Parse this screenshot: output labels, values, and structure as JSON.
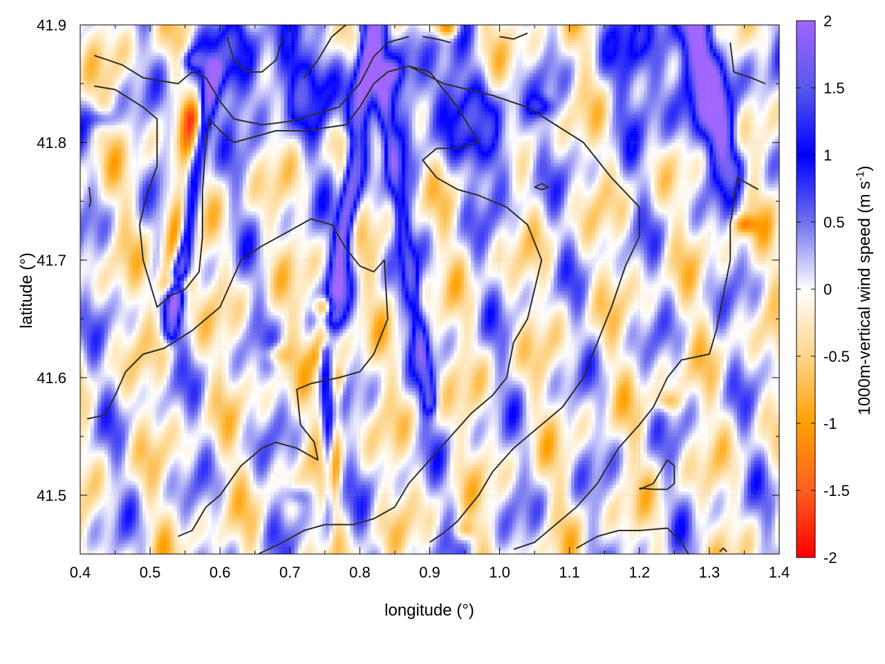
{
  "chart_data": {
    "type": "heatmap",
    "xlabel": "longitude (°)",
    "ylabel": "latitude (°)",
    "colorbar": {
      "label_main": "1000m-vertical wind speed (m s",
      "label_sup": "-1",
      "label_end": ")",
      "range": [
        -2,
        2
      ],
      "ticks": [
        2,
        1.5,
        1,
        0.5,
        0,
        -0.5,
        -1,
        -1.5,
        -2
      ],
      "tick_labels": [
        "2",
        "1.5",
        "1",
        "0.5",
        "0",
        "-0.5",
        "-1",
        "-1.5",
        "-2"
      ],
      "stops": [
        {
          "value": 2,
          "color": "#a066ff"
        },
        {
          "value": 1.5,
          "color": "#5858ee"
        },
        {
          "value": 1,
          "color": "#0000ff"
        },
        {
          "value": 0.5,
          "color": "#7070f0"
        },
        {
          "value": 0,
          "color": "#ffffff"
        },
        {
          "value": -0.5,
          "color": "#fdd58a"
        },
        {
          "value": -1,
          "color": "#ffa000"
        },
        {
          "value": -1.5,
          "color": "#ff6020"
        },
        {
          "value": -2,
          "color": "#ff0000"
        }
      ]
    },
    "xlim": [
      0.4,
      1.4
    ],
    "ylim": [
      41.45,
      41.9
    ],
    "x_ticks": [
      0.4,
      0.5,
      0.6,
      0.7,
      0.8,
      0.9,
      1.0,
      1.1,
      1.2,
      1.3,
      1.4
    ],
    "x_tick_labels": [
      "0.4",
      "0.5",
      "0.6",
      "0.7",
      "0.8",
      "0.9",
      "1.0",
      "1.1",
      "1.2",
      "1.3",
      "1.4"
    ],
    "y_ticks": [
      41.5,
      41.6,
      41.7,
      41.8,
      41.9
    ],
    "y_tick_labels": [
      "41.5",
      "41.6",
      "41.7",
      "41.8",
      "41.9"
    ],
    "grid": true,
    "features": [
      {
        "x0": 0.82,
        "y0": 41.9,
        "x1": 0.76,
        "y1": 41.66,
        "value": 2.0,
        "width": 0.012
      },
      {
        "x0": 0.83,
        "y0": 41.85,
        "x1": 0.9,
        "y1": 41.58,
        "value": 1.2,
        "width": 0.008
      },
      {
        "x0": 0.59,
        "y0": 41.86,
        "x1": 0.53,
        "y1": 41.64,
        "value": 1.4,
        "width": 0.008
      },
      {
        "x0": 0.56,
        "y0": 41.82,
        "x1": 0.52,
        "y1": 41.68,
        "value": -0.9,
        "width": 0.009
      },
      {
        "x0": 0.78,
        "y0": 41.8,
        "x1": 0.74,
        "y1": 41.62,
        "value": -0.7,
        "width": 0.008
      },
      {
        "x0": 0.75,
        "y0": 41.62,
        "x1": 0.76,
        "y1": 41.45,
        "value": 0.9,
        "width": 0.006
      },
      {
        "x0": 0.77,
        "y0": 41.6,
        "x1": 0.76,
        "y1": 41.45,
        "value": -0.8,
        "width": 0.006
      },
      {
        "x0": 1.28,
        "y0": 41.9,
        "x1": 1.33,
        "y1": 41.78,
        "value": 1.3,
        "width": 0.014
      },
      {
        "x0": 0.88,
        "y0": 41.85,
        "x1": 1.0,
        "y1": 41.8,
        "value": 0.9,
        "width": 0.03
      },
      {
        "x0": 0.6,
        "y0": 41.87,
        "x1": 0.75,
        "y1": 41.85,
        "value": 0.9,
        "width": 0.03
      },
      {
        "x0": 1.22,
        "y0": 41.88,
        "x1": 1.3,
        "y1": 41.84,
        "value": 0.9,
        "width": 0.04
      }
    ],
    "spots": [
      {
        "x": 0.925,
        "y": 41.898,
        "value": -1.6
      },
      {
        "x": 1.35,
        "y": 41.73,
        "value": -1.1
      },
      {
        "x": 0.75,
        "y": 41.66,
        "value": -1.5
      },
      {
        "x": 0.54,
        "y": 41.68,
        "value": -1.2
      },
      {
        "x": 0.68,
        "y": 41.62,
        "value": -0.8
      },
      {
        "x": 1.24,
        "y": 41.58,
        "value": -0.8
      },
      {
        "x": 0.95,
        "y": 41.47,
        "value": -0.7
      },
      {
        "x": 1.06,
        "y": 41.83,
        "value": 0.9
      },
      {
        "x": 0.56,
        "y": 41.87,
        "value": 0.9
      },
      {
        "x": 0.84,
        "y": 41.86,
        "value": 1.2
      },
      {
        "x": 0.71,
        "y": 41.5,
        "value": 0.7
      },
      {
        "x": 0.43,
        "y": 41.82,
        "value": 0.8
      }
    ],
    "contours": [
      [
        [
          0.42,
          41.874
        ],
        [
          0.46,
          41.866
        ],
        [
          0.49,
          41.855
        ],
        [
          0.54,
          41.85
        ],
        [
          0.56,
          41.86
        ],
        [
          0.58,
          41.855
        ],
        [
          0.6,
          41.835
        ],
        [
          0.62,
          41.82
        ],
        [
          0.66,
          41.815
        ],
        [
          0.7,
          41.818
        ],
        [
          0.74,
          41.825
        ],
        [
          0.77,
          41.83
        ],
        [
          0.8,
          41.85
        ],
        [
          0.82,
          41.873
        ],
        [
          0.84,
          41.885
        ],
        [
          0.87,
          41.89
        ]
      ],
      [
        [
          0.42,
          41.848
        ],
        [
          0.45,
          41.845
        ],
        [
          0.49,
          41.83
        ],
        [
          0.51,
          41.82
        ],
        [
          0.51,
          41.78
        ],
        [
          0.495,
          41.755
        ],
        [
          0.485,
          41.73
        ],
        [
          0.49,
          41.7
        ],
        [
          0.5,
          41.68
        ],
        [
          0.51,
          41.66
        ],
        [
          0.53,
          41.67
        ],
        [
          0.55,
          41.675
        ],
        [
          0.57,
          41.69
        ],
        [
          0.575,
          41.72
        ],
        [
          0.575,
          41.76
        ],
        [
          0.58,
          41.8
        ],
        [
          0.585,
          41.82
        ]
      ],
      [
        [
          0.41,
          41.565
        ],
        [
          0.435,
          41.568
        ],
        [
          0.45,
          41.585
        ],
        [
          0.465,
          41.605
        ],
        [
          0.49,
          41.62
        ],
        [
          0.52,
          41.625
        ],
        [
          0.56,
          41.64
        ],
        [
          0.6,
          41.66
        ],
        [
          0.63,
          41.7
        ],
        [
          0.66,
          41.712
        ],
        [
          0.7,
          41.725
        ],
        [
          0.73,
          41.735
        ],
        [
          0.76,
          41.73
        ],
        [
          0.78,
          41.71
        ],
        [
          0.8,
          41.695
        ],
        [
          0.82,
          41.69
        ],
        [
          0.835,
          41.7
        ],
        [
          0.84,
          41.65
        ],
        [
          0.82,
          41.62
        ],
        [
          0.8,
          41.605
        ],
        [
          0.77,
          41.6
        ],
        [
          0.73,
          41.595
        ],
        [
          0.71,
          41.59
        ],
        [
          0.715,
          41.56
        ],
        [
          0.735,
          41.545
        ],
        [
          0.74,
          41.53
        ],
        [
          0.71,
          41.54
        ],
        [
          0.68,
          41.545
        ],
        [
          0.66,
          41.54
        ],
        [
          0.63,
          41.525
        ],
        [
          0.6,
          41.5
        ],
        [
          0.58,
          41.49
        ],
        [
          0.56,
          41.47
        ],
        [
          0.54,
          41.465
        ]
      ],
      [
        [
          0.585,
          41.82
        ],
        [
          0.6,
          41.81
        ],
        [
          0.62,
          41.8
        ],
        [
          0.65,
          41.805
        ],
        [
          0.68,
          41.81
        ],
        [
          0.72,
          41.81
        ],
        [
          0.78,
          41.815
        ],
        [
          0.8,
          41.83
        ],
        [
          0.82,
          41.85
        ],
        [
          0.84,
          41.86
        ],
        [
          0.87,
          41.865
        ],
        [
          0.9,
          41.86
        ],
        [
          0.94,
          41.83
        ],
        [
          0.97,
          41.8
        ],
        [
          0.94,
          41.795
        ],
        [
          0.91,
          41.795
        ],
        [
          0.89,
          41.785
        ],
        [
          0.91,
          41.77
        ],
        [
          0.94,
          41.76
        ],
        [
          0.97,
          41.755
        ],
        [
          1.01,
          41.745
        ],
        [
          1.04,
          41.73
        ],
        [
          1.06,
          41.7
        ],
        [
          1.04,
          41.65
        ],
        [
          1.02,
          41.63
        ],
        [
          1.01,
          41.6
        ],
        [
          0.99,
          41.585
        ],
        [
          0.96,
          41.57
        ],
        [
          0.93,
          41.55
        ],
        [
          0.9,
          41.53
        ],
        [
          0.87,
          41.51
        ],
        [
          0.85,
          41.49
        ],
        [
          0.82,
          41.48
        ],
        [
          0.79,
          41.475
        ],
        [
          0.75,
          41.475
        ],
        [
          0.72,
          41.47
        ],
        [
          0.69,
          41.46
        ],
        [
          0.655,
          41.45
        ]
      ],
      [
        [
          0.87,
          41.865
        ],
        [
          0.92,
          41.85
        ],
        [
          0.99,
          41.84
        ],
        [
          1.04,
          41.83
        ],
        [
          1.08,
          41.815
        ],
        [
          1.12,
          41.8
        ],
        [
          1.16,
          41.77
        ],
        [
          1.2,
          41.745
        ],
        [
          1.2,
          41.72
        ],
        [
          1.18,
          41.695
        ],
        [
          1.16,
          41.66
        ],
        [
          1.14,
          41.63
        ],
        [
          1.12,
          41.6
        ],
        [
          1.09,
          41.575
        ],
        [
          1.06,
          41.56
        ],
        [
          1.02,
          41.54
        ],
        [
          0.99,
          41.52
        ],
        [
          0.97,
          41.5
        ],
        [
          0.94,
          41.478
        ],
        [
          0.92,
          41.468
        ],
        [
          0.9,
          41.46
        ]
      ],
      [
        [
          1.37,
          41.76
        ],
        [
          1.34,
          41.77
        ],
        [
          1.33,
          41.73
        ],
        [
          1.33,
          41.7
        ],
        [
          1.32,
          41.67
        ],
        [
          1.31,
          41.64
        ],
        [
          1.3,
          41.62
        ],
        [
          1.26,
          41.615
        ],
        [
          1.24,
          41.6
        ],
        [
          1.22,
          41.575
        ],
        [
          1.2,
          41.56
        ],
        [
          1.17,
          41.54
        ],
        [
          1.14,
          41.51
        ],
        [
          1.11,
          41.49
        ],
        [
          1.07,
          41.47
        ],
        [
          1.05,
          41.46
        ],
        [
          1.02,
          41.454
        ]
      ],
      [
        [
          0.72,
          41.855
        ],
        [
          0.74,
          41.87
        ],
        [
          0.76,
          41.89
        ],
        [
          0.78,
          41.9
        ]
      ],
      [
        [
          0.61,
          41.89
        ],
        [
          0.62,
          41.87
        ],
        [
          0.64,
          41.86
        ],
        [
          0.66,
          41.86
        ],
        [
          0.68,
          41.87
        ],
        [
          0.69,
          41.89
        ]
      ],
      [
        [
          1.33,
          41.885
        ],
        [
          1.335,
          41.86
        ],
        [
          1.36,
          41.855
        ],
        [
          1.38,
          41.85
        ]
      ],
      [
        [
          1.2,
          41.506
        ],
        [
          1.22,
          41.505
        ],
        [
          1.24,
          41.505
        ],
        [
          1.25,
          41.51
        ],
        [
          1.25,
          41.525
        ],
        [
          1.24,
          41.53
        ],
        [
          1.23,
          41.52
        ],
        [
          1.22,
          41.51
        ],
        [
          1.2,
          41.505
        ]
      ],
      [
        [
          1.11,
          41.455
        ],
        [
          1.14,
          41.465
        ],
        [
          1.17,
          41.47
        ],
        [
          1.2,
          41.47
        ],
        [
          1.24,
          41.472
        ],
        [
          1.26,
          41.46
        ],
        [
          1.27,
          41.45
        ]
      ],
      [
        [
          0.413,
          41.762
        ],
        [
          0.415,
          41.75
        ],
        [
          0.413,
          41.745
        ]
      ],
      [
        [
          1.05,
          41.762
        ],
        [
          1.06,
          41.765
        ],
        [
          1.07,
          41.762
        ],
        [
          1.06,
          41.76
        ],
        [
          1.05,
          41.762
        ]
      ],
      [
        [
          1.0,
          41.89
        ],
        [
          1.02,
          41.888
        ],
        [
          1.04,
          41.893
        ]
      ],
      [
        [
          0.89,
          41.89
        ],
        [
          0.91,
          41.888
        ],
        [
          0.93,
          41.885
        ]
      ],
      [
        [
          1.315,
          41.452
        ],
        [
          1.32,
          41.455
        ],
        [
          1.325,
          41.452
        ]
      ]
    ]
  }
}
